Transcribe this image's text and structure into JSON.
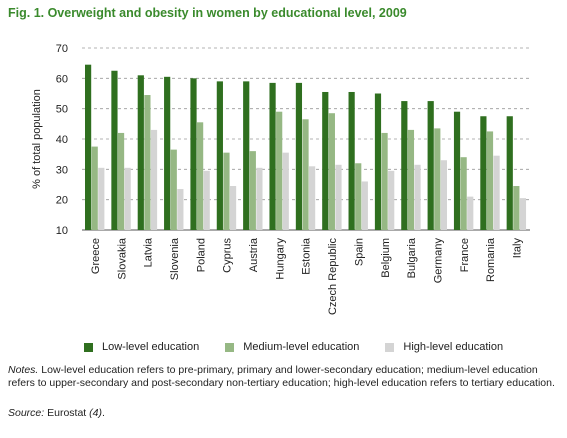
{
  "figure": {
    "title": "Fig. 1. Overweight and obesity in women by educational level, 2009"
  },
  "colors": {
    "title": "#3a8a2c",
    "low": "#2f6f1f",
    "medium": "#96b884",
    "high": "#d4d4d4"
  },
  "chart_data": {
    "type": "bar",
    "title": "",
    "xlabel": "",
    "ylabel": "% of total population",
    "ylim": [
      10,
      70
    ],
    "yticks": [
      10,
      20,
      30,
      40,
      50,
      60,
      70
    ],
    "grid": "horizontal-dashed",
    "legend_placement": "bottom",
    "categories": [
      "Greece",
      "Slovakia",
      "Latvia",
      "Slovenia",
      "Poland",
      "Cyprus",
      "Austria",
      "Hungary",
      "Estonia",
      "Czech Republic",
      "Spain",
      "Belgium",
      "Bulgaria",
      "Germany",
      "France",
      "Romania",
      "Italy"
    ],
    "series": [
      {
        "name": "Low-level education",
        "color": "#2f6f1f",
        "values": [
          64.5,
          62.5,
          61,
          60.5,
          60,
          59,
          59,
          58.5,
          58.5,
          55.5,
          55.5,
          55,
          52.5,
          52.5,
          49,
          47.5,
          47.5
        ]
      },
      {
        "name": "Medium-level education",
        "color": "#96b884",
        "values": [
          37.5,
          42,
          54.5,
          36.5,
          45.5,
          35.5,
          36,
          49,
          46.5,
          48.5,
          32,
          42,
          43,
          43.5,
          34,
          42.5,
          24.5
        ]
      },
      {
        "name": "High-level education",
        "color": "#d4d4d4",
        "values": [
          30.5,
          30.5,
          43,
          23.5,
          29.5,
          24.5,
          30.5,
          35.5,
          31,
          31.5,
          26,
          29.5,
          31.5,
          33,
          21,
          34.5,
          20.5
        ]
      }
    ]
  },
  "notes": {
    "lead": "Notes.",
    "text": " Low-level education refers to pre-primary, primary and lower-secondary education; medium-level education refers to upper-secondary and post-secondary non-tertiary education; high-level education refers to tertiary education."
  },
  "source": {
    "lead": "Source:",
    "text": " Eurostat ",
    "ref": "(4)",
    "end": "."
  }
}
